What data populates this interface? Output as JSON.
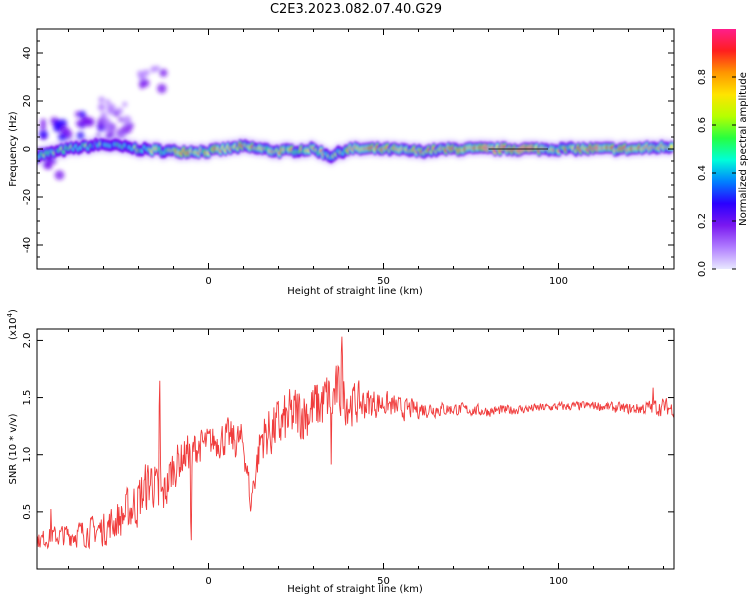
{
  "title": "C2E3.2023.082.07.40.G29",
  "colors": {
    "snr_line": "#f03c3c",
    "colormap": [
      "#e8e8ff",
      "#b07cff",
      "#7a18f0",
      "#2a00ff",
      "#0080ff",
      "#00ffd8",
      "#27ff40",
      "#b6ff00",
      "#ffe400",
      "#ff9600",
      "#ff1e1e",
      "#ff1e8c"
    ]
  },
  "chart_data": [
    {
      "type": "heatmap",
      "title": "",
      "xlabel": "Height of straight line (km)",
      "ylabel": "Frequency (Hz)",
      "xlim": [
        -49,
        133
      ],
      "ylim": [
        -50,
        50
      ],
      "x_ticks": [
        "0",
        "50",
        "100"
      ],
      "x_tick_values": [
        0,
        50,
        100
      ],
      "y_ticks": [
        "40",
        "20",
        "0",
        "-20",
        "-40"
      ],
      "y_tick_values": [
        40,
        20,
        0,
        -20,
        -40
      ],
      "grid": false,
      "colorbar": {
        "label": "Normalized spectral amplitude",
        "range": [
          0,
          1
        ],
        "ticks": [
          "0.0",
          "0.2",
          "0.4",
          "0.6",
          "0.8"
        ],
        "tick_values": [
          0.0,
          0.2,
          0.4,
          0.6,
          0.8
        ]
      },
      "ridge": {
        "x": [
          -49,
          -40,
          -30,
          -25,
          -20,
          -10,
          0,
          10,
          20,
          30,
          35,
          40,
          50,
          60,
          70,
          80,
          90,
          100,
          110,
          120,
          133
        ],
        "frequency": [
          -3,
          0,
          2,
          1,
          0,
          -1,
          -1,
          1,
          -1,
          0,
          -3,
          0,
          0,
          -1,
          0,
          0,
          0,
          0,
          0,
          0,
          1
        ],
        "amplitude": [
          0.55,
          0.5,
          0.5,
          0.45,
          0.55,
          0.7,
          0.7,
          0.75,
          0.7,
          0.7,
          0.6,
          0.7,
          0.75,
          0.75,
          0.8,
          0.9,
          1.0,
          0.7,
          0.85,
          0.8,
          0.75
        ]
      },
      "blobs": [
        {
          "x": -44,
          "frequency": 8,
          "amplitude": 0.25
        },
        {
          "x": -38,
          "frequency": 10,
          "amplitude": 0.25
        },
        {
          "x": -30,
          "frequency": 8,
          "amplitude": 0.2
        },
        {
          "x": -26,
          "frequency": 10,
          "amplitude": 0.15
        },
        {
          "x": -16,
          "frequency": 30,
          "amplitude": 0.15
        },
        {
          "x": -46,
          "frequency": -6,
          "amplitude": 0.2
        },
        {
          "x": -27,
          "frequency": 18,
          "amplitude": 0.1
        }
      ]
    },
    {
      "type": "line",
      "title": "",
      "xlabel": "Height of straight line (km)",
      "ylabel": "SNR (10 * v/v)",
      "y_multiplier_label": "(x10",
      "y_multiplier_exp": "4",
      "y_multiplier_close": ")",
      "xlim": [
        -49,
        133
      ],
      "ylim": [
        0,
        21000
      ],
      "x_ticks": [
        "0",
        "50",
        "100"
      ],
      "x_tick_values": [
        0,
        50,
        100
      ],
      "y_ticks": [
        "0.5",
        "1.0",
        "1.5",
        "2.0"
      ],
      "y_tick_values": [
        5000,
        10000,
        15000,
        20000
      ],
      "grid": false,
      "series": [
        {
          "x": [
            -49,
            -45,
            -40,
            -35,
            -30,
            -25,
            -20,
            -16,
            -14,
            -10,
            -5,
            0,
            5,
            10,
            12,
            15,
            20,
            25,
            30,
            35,
            38,
            40,
            45,
            50,
            55,
            60,
            70,
            80,
            90,
            100,
            110,
            120,
            125,
            130,
            133
          ],
          "values": [
            2500,
            2800,
            3000,
            3200,
            3500,
            4500,
            6000,
            8000,
            5500,
            9000,
            10500,
            11000,
            11500,
            11000,
            6000,
            11500,
            12500,
            13500,
            14000,
            15000,
            15500,
            14500,
            14500,
            14500,
            14000,
            14000,
            14000,
            13800,
            14000,
            14200,
            14300,
            14000,
            14100,
            14200,
            14000
          ],
          "spread": [
            900,
            1100,
            1300,
            1500,
            1800,
            2300,
            2800,
            3000,
            2800,
            2400,
            2000,
            1800,
            2000,
            2200,
            1500,
            2600,
            3000,
            3200,
            3200,
            3200,
            3000,
            2600,
            1800,
            1400,
            1200,
            1000,
            700,
            600,
            500,
            500,
            500,
            600,
            800,
            1000,
            800
          ],
          "spikes": [
            [
              -14,
              17200
            ],
            [
              38,
              20800
            ],
            [
              -45,
              6200
            ],
            [
              -5,
              2000
            ],
            [
              12,
              4800
            ],
            [
              35,
              7500
            ],
            [
              127,
              16300
            ]
          ]
        }
      ]
    }
  ]
}
